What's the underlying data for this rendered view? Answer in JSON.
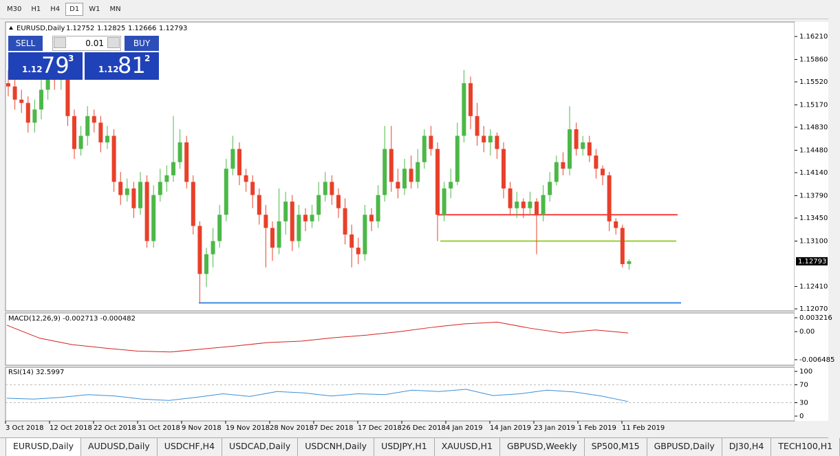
{
  "toolbar": {
    "timeframes": [
      "M30",
      "H1",
      "H4",
      "D1",
      "W1",
      "MN"
    ],
    "active": "D1"
  },
  "header": {
    "symbol": "EURUSD,Daily",
    "open": "1.12752",
    "high": "1.12825",
    "low": "1.12666",
    "close": "1.12793"
  },
  "trade_panel": {
    "sell": "SELL",
    "buy": "BUY",
    "lot": "0.01",
    "bid": {
      "big": "1.12",
      "pips": "79",
      "frac": "3"
    },
    "ask": {
      "big": "1.12",
      "pips": "81",
      "frac": "2"
    }
  },
  "macd_title": "MACD(12,26,9) -0.002713 -0.000482",
  "rsi_title": "RSI(14) 32.5997",
  "tabs": [
    "EURUSD,Daily",
    "AUDUSD,Daily",
    "USDCHF,H4",
    "USDCAD,Daily",
    "USDCNH,Daily",
    "USDJPY,H1",
    "XAUUSD,H1",
    "GBPUSD,Weekly",
    "SP500,M15",
    "GBPUSD,Daily",
    "DJ30,H4",
    "TECH100,H1"
  ],
  "chart_data": {
    "type": "candlestick",
    "up_color": "#4cb848",
    "down_color": "#e8402a",
    "ylim": [
      1.12039,
      1.1643
    ],
    "yticks": [
      {
        "value": 1.1621,
        "label": "1.16210"
      },
      {
        "value": 1.1586,
        "label": "1.15860"
      },
      {
        "value": 1.1552,
        "label": "1.15520"
      },
      {
        "value": 1.1517,
        "label": "1.15170"
      },
      {
        "value": 1.1483,
        "label": "1.14830"
      },
      {
        "value": 1.1448,
        "label": "1.14480"
      },
      {
        "value": 1.1414,
        "label": "1.14140"
      },
      {
        "value": 1.1379,
        "label": "1.13790"
      },
      {
        "value": 1.1345,
        "label": "1.13450"
      },
      {
        "value": 1.131,
        "label": "1.13100"
      },
      {
        "value": 1.1241,
        "label": "1.12410"
      },
      {
        "value": 1.1207,
        "label": "1.12070"
      }
    ],
    "current_price": {
      "value": 1.12793,
      "label": "1.12793"
    },
    "date_labels": [
      "3 Oct 2018",
      "12 Oct 2018",
      "22 Oct 2018",
      "31 Oct 2018",
      "9 Nov 2018",
      "19 Nov 2018",
      "28 Nov 2018",
      "7 Dec 2018",
      "17 Dec 2018",
      "26 Dec 2018",
      "4 Jan 2019",
      "14 Jan 2019",
      "23 Jan 2019",
      "1 Feb 2019",
      "11 Feb 2019"
    ],
    "levels": [
      {
        "value": 1.135,
        "color": "#ff3b3b"
      },
      {
        "value": 1.131,
        "color": "#9acd32"
      },
      {
        "value": 1.1216,
        "color": "#3b8be0"
      }
    ],
    "ohlc": [
      [
        1.155,
        1.157,
        1.153,
        1.1545
      ],
      [
        1.1545,
        1.156,
        1.151,
        1.1525
      ],
      [
        1.1525,
        1.154,
        1.1505,
        1.152
      ],
      [
        1.152,
        1.153,
        1.1475,
        1.149
      ],
      [
        1.149,
        1.1525,
        1.1475,
        1.151
      ],
      [
        1.151,
        1.1555,
        1.1495,
        1.154
      ],
      [
        1.154,
        1.1575,
        1.1525,
        1.156
      ],
      [
        1.156,
        1.158,
        1.154,
        1.1555
      ],
      [
        1.1555,
        1.1585,
        1.154,
        1.157
      ],
      [
        1.157,
        1.158,
        1.1485,
        1.15
      ],
      [
        1.15,
        1.151,
        1.1435,
        1.145
      ],
      [
        1.145,
        1.1485,
        1.144,
        1.147
      ],
      [
        1.147,
        1.1515,
        1.1455,
        1.15
      ],
      [
        1.15,
        1.151,
        1.1475,
        1.149
      ],
      [
        1.149,
        1.15,
        1.1445,
        1.146
      ],
      [
        1.146,
        1.1485,
        1.145,
        1.147
      ],
      [
        1.147,
        1.148,
        1.1385,
        1.14
      ],
      [
        1.14,
        1.1415,
        1.1365,
        1.138
      ],
      [
        1.138,
        1.1405,
        1.137,
        1.139
      ],
      [
        1.139,
        1.14,
        1.1345,
        1.136
      ],
      [
        1.136,
        1.1415,
        1.135,
        1.14
      ],
      [
        1.14,
        1.141,
        1.13,
        1.131
      ],
      [
        1.131,
        1.1395,
        1.13,
        1.138
      ],
      [
        1.138,
        1.142,
        1.137,
        1.14
      ],
      [
        1.14,
        1.1425,
        1.1385,
        1.141
      ],
      [
        1.141,
        1.15,
        1.14,
        1.143
      ],
      [
        1.143,
        1.148,
        1.142,
        1.146
      ],
      [
        1.146,
        1.147,
        1.139,
        1.14
      ],
      [
        1.14,
        1.141,
        1.132,
        1.1333
      ],
      [
        1.1333,
        1.134,
        1.1216,
        1.126
      ],
      [
        1.126,
        1.13,
        1.124,
        1.129
      ],
      [
        1.129,
        1.133,
        1.127,
        1.131
      ],
      [
        1.131,
        1.1365,
        1.13,
        1.135
      ],
      [
        1.135,
        1.1435,
        1.134,
        1.142
      ],
      [
        1.142,
        1.147,
        1.141,
        1.145
      ],
      [
        1.145,
        1.146,
        1.1395,
        1.141
      ],
      [
        1.141,
        1.142,
        1.1385,
        1.14
      ],
      [
        1.14,
        1.141,
        1.136,
        1.138
      ],
      [
        1.138,
        1.139,
        1.1335,
        1.135
      ],
      [
        1.135,
        1.1365,
        1.127,
        1.133
      ],
      [
        1.133,
        1.134,
        1.128,
        1.13
      ],
      [
        1.13,
        1.139,
        1.129,
        1.134
      ],
      [
        1.134,
        1.1385,
        1.132,
        1.137
      ],
      [
        1.137,
        1.138,
        1.1295,
        1.131
      ],
      [
        1.131,
        1.1365,
        1.13,
        1.135
      ],
      [
        1.135,
        1.136,
        1.1325,
        1.134
      ],
      [
        1.134,
        1.1365,
        1.133,
        1.135
      ],
      [
        1.135,
        1.14,
        1.134,
        1.138
      ],
      [
        1.138,
        1.1415,
        1.137,
        1.14
      ],
      [
        1.14,
        1.141,
        1.1365,
        1.138
      ],
      [
        1.138,
        1.139,
        1.1345,
        1.136
      ],
      [
        1.136,
        1.1375,
        1.1305,
        1.132
      ],
      [
        1.132,
        1.1335,
        1.127,
        1.13
      ],
      [
        1.13,
        1.1315,
        1.1275,
        1.129
      ],
      [
        1.129,
        1.1365,
        1.128,
        1.135
      ],
      [
        1.135,
        1.136,
        1.1325,
        1.134
      ],
      [
        1.134,
        1.1395,
        1.133,
        1.138
      ],
      [
        1.138,
        1.1485,
        1.137,
        1.145
      ],
      [
        1.145,
        1.1485,
        1.1385,
        1.14
      ],
      [
        1.14,
        1.142,
        1.1375,
        1.139
      ],
      [
        1.139,
        1.1435,
        1.138,
        1.142
      ],
      [
        1.142,
        1.144,
        1.139,
        1.14
      ],
      [
        1.14,
        1.145,
        1.139,
        1.143
      ],
      [
        1.143,
        1.148,
        1.142,
        1.147
      ],
      [
        1.147,
        1.1485,
        1.144,
        1.145
      ],
      [
        1.145,
        1.146,
        1.131,
        1.135
      ],
      [
        1.135,
        1.14,
        1.134,
        1.139
      ],
      [
        1.139,
        1.142,
        1.1375,
        1.14
      ],
      [
        1.14,
        1.149,
        1.1395,
        1.147
      ],
      [
        1.147,
        1.157,
        1.146,
        1.155
      ],
      [
        1.155,
        1.156,
        1.148,
        1.15
      ],
      [
        1.15,
        1.152,
        1.1455,
        1.147
      ],
      [
        1.147,
        1.1485,
        1.1445,
        1.146
      ],
      [
        1.146,
        1.148,
        1.144,
        1.147
      ],
      [
        1.147,
        1.1475,
        1.1435,
        1.145
      ],
      [
        1.145,
        1.146,
        1.1375,
        1.139
      ],
      [
        1.139,
        1.14,
        1.135,
        1.136
      ],
      [
        1.136,
        1.1385,
        1.1345,
        1.137
      ],
      [
        1.137,
        1.1375,
        1.1345,
        1.136
      ],
      [
        1.136,
        1.1385,
        1.135,
        1.137
      ],
      [
        1.137,
        1.1375,
        1.129,
        1.135
      ],
      [
        1.135,
        1.1395,
        1.134,
        1.138
      ],
      [
        1.138,
        1.1415,
        1.137,
        1.14
      ],
      [
        1.14,
        1.144,
        1.1395,
        1.143
      ],
      [
        1.143,
        1.1445,
        1.141,
        1.142
      ],
      [
        1.142,
        1.1515,
        1.141,
        1.148
      ],
      [
        1.148,
        1.149,
        1.144,
        1.145
      ],
      [
        1.145,
        1.147,
        1.144,
        1.146
      ],
      [
        1.146,
        1.147,
        1.143,
        1.144
      ],
      [
        1.144,
        1.145,
        1.1405,
        1.142
      ],
      [
        1.142,
        1.1425,
        1.1395,
        1.141
      ],
      [
        1.141,
        1.1415,
        1.1325,
        1.134
      ],
      [
        1.134,
        1.1345,
        1.132,
        1.133
      ],
      [
        1.133,
        1.1335,
        1.127,
        1.1275
      ],
      [
        1.12752,
        1.12825,
        1.12666,
        1.12793
      ]
    ],
    "macd": {
      "ylim": [
        -0.006485,
        0.003216
      ],
      "yticks": [
        0.003216,
        {
          "value": 0,
          "label": "0.00"
        },
        -0.006485
      ],
      "color": "#d42020",
      "signal": [
        0.0015,
        -0.0015,
        -0.003,
        -0.0038,
        -0.0045,
        -0.0047,
        -0.004,
        -0.0033,
        -0.0025,
        -0.0022,
        -0.0014,
        -0.0008,
        0,
        0.001,
        0.0018,
        0.0022,
        0.0008,
        -0.0003,
        0.0004,
        -0.0003
      ]
    },
    "rsi": {
      "ylim": [
        0,
        100
      ],
      "yticks": [
        100,
        70,
        30,
        0
      ],
      "levels": [
        70,
        30
      ],
      "color": "#3a8fd8",
      "values": [
        40,
        38,
        42,
        48,
        45,
        38,
        35,
        42,
        50,
        44,
        55,
        52,
        45,
        50,
        48,
        58,
        55,
        60,
        46,
        50,
        58,
        54,
        45,
        32.5997
      ]
    }
  }
}
